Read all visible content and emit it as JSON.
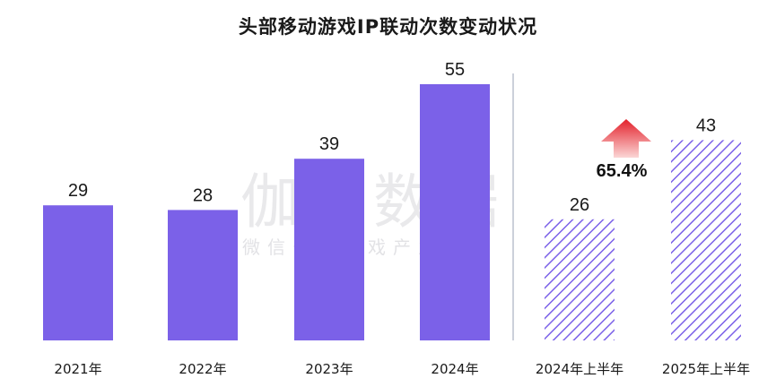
{
  "chart_data": {
    "type": "bar",
    "title": "头部移动游戏IP联动次数变动状况",
    "categories": [
      "2021年",
      "2022年",
      "2023年",
      "2024年",
      "2024年上半年",
      "2025年上半年"
    ],
    "values": [
      29,
      28,
      39,
      55,
      26,
      43
    ],
    "series_style": [
      "solid",
      "solid",
      "solid",
      "solid",
      "hatched",
      "hatched"
    ],
    "ylim": [
      0,
      55
    ],
    "grid": false,
    "annotation": {
      "text": "65.4%",
      "between": [
        "2024年上半年",
        "2025年上半年"
      ],
      "icon": "up-arrow-icon"
    }
  },
  "watermark": {
    "main": "伽马数据",
    "sub": "微信号：游戏产业报告"
  },
  "colors": {
    "bar": "#7b61e8",
    "hatch": "#7b61e8",
    "arrow_top": "#e3202a",
    "arrow_bottom": "#fbd6d6",
    "divider": "#9aa0b4"
  }
}
